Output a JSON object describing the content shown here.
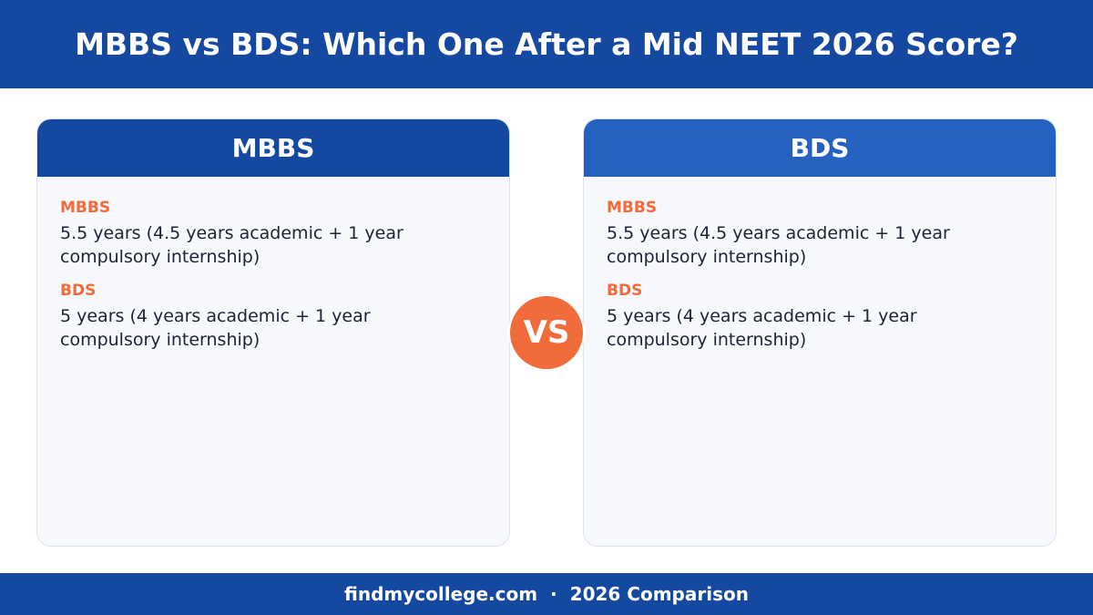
{
  "header": {
    "title": "MBBS vs BDS: Which One After a Mid NEET 2026 Score?"
  },
  "panels": [
    {
      "title": "MBBS",
      "items": [
        {
          "label": "MBBS",
          "text": "5.5 years (4.5 years academic + 1 year compulsory internship)"
        },
        {
          "label": "BDS",
          "text": "5 years (4 years academic + 1 year compulsory internship)"
        }
      ]
    },
    {
      "title": "BDS",
      "items": [
        {
          "label": "MBBS",
          "text": "5.5 years (4.5 years academic + 1 year compulsory internship)"
        },
        {
          "label": "BDS",
          "text": "5 years (4 years academic + 1 year compulsory internship)"
        }
      ]
    }
  ],
  "vs": "VS",
  "footer": {
    "site": "findmycollege.com",
    "separator": "·",
    "note": "2026 Comparison"
  }
}
